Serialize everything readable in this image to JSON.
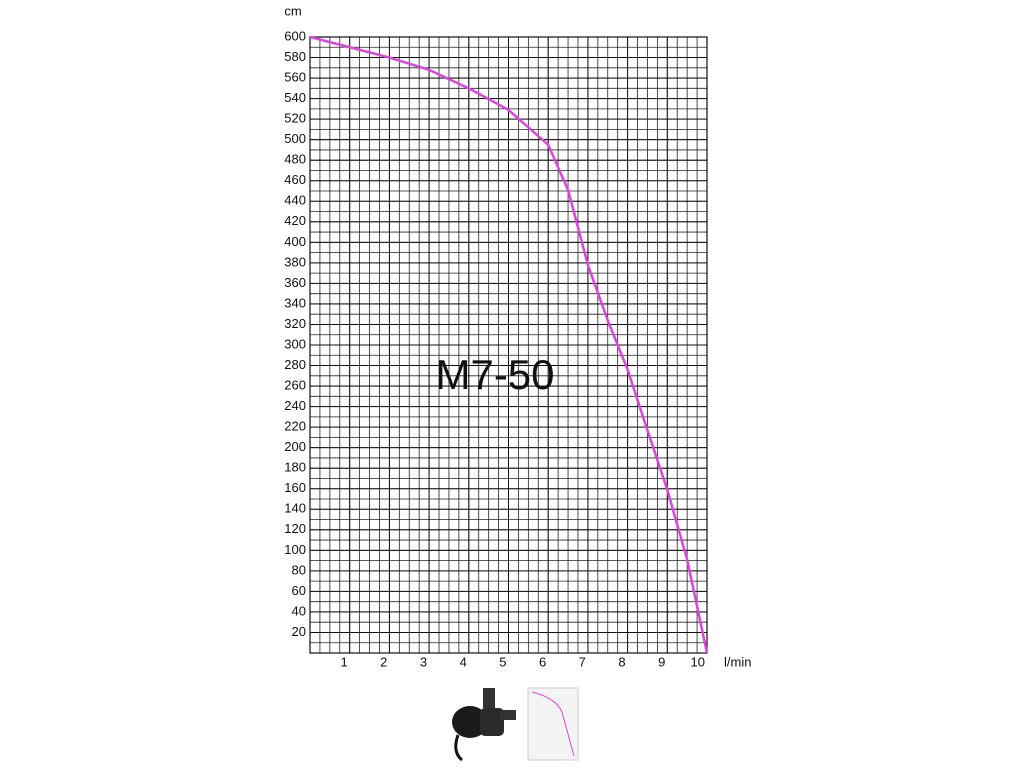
{
  "chart_data": {
    "type": "line",
    "annotation": "M7-50",
    "y_label": "cm",
    "x_label": "l/min",
    "x": [
      0,
      1,
      2,
      3,
      4,
      5,
      6,
      6.5,
      7,
      7.5,
      8,
      8.5,
      9,
      9.5,
      10
    ],
    "series": [
      {
        "name": "M7-50",
        "color": "#dd44dd",
        "values": [
          600,
          590,
          580,
          568,
          550,
          529,
          495,
          451,
          378,
          324,
          276,
          217,
          159,
          91,
          0
        ]
      }
    ],
    "xlim": [
      0,
      10
    ],
    "xticks": [
      1,
      2,
      3,
      4,
      5,
      6,
      7,
      8,
      9,
      10
    ],
    "ylim": [
      0,
      600
    ],
    "yticks": [
      20,
      40,
      60,
      80,
      100,
      120,
      140,
      160,
      180,
      200,
      220,
      240,
      260,
      280,
      300,
      320,
      340,
      360,
      380,
      400,
      420,
      440,
      460,
      480,
      500,
      520,
      540,
      560,
      580,
      600
    ],
    "grid": true
  }
}
